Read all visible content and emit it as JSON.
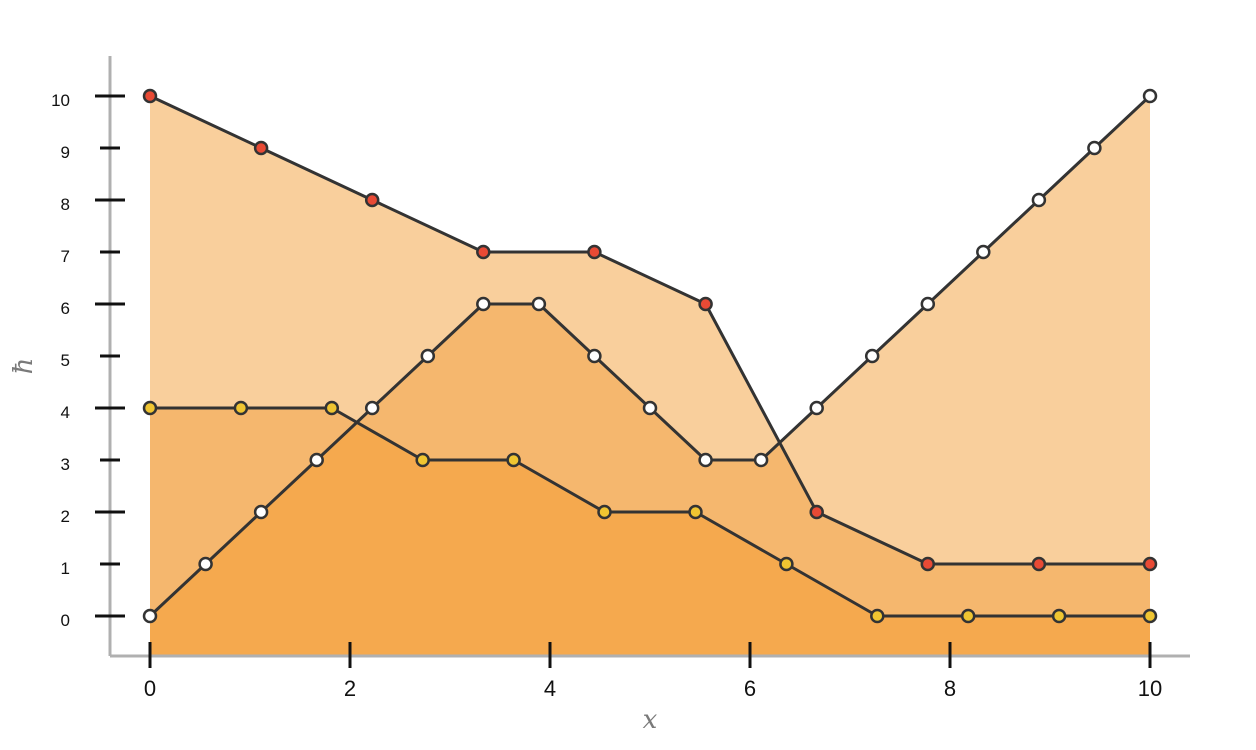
{
  "chart_data": {
    "type": "area",
    "title": "",
    "xlabel": "x",
    "ylabel": "ħ",
    "xlim": [
      -0.4,
      10.4
    ],
    "ylim": [
      -0.75,
      10.75
    ],
    "x_ticks": [
      "0",
      "2",
      "4",
      "6",
      "8",
      "10"
    ],
    "y_ticks": [
      "0",
      "1",
      "2",
      "3",
      "4",
      "5",
      "6",
      "7",
      "8",
      "9",
      "10"
    ],
    "grid": false,
    "legend": "none",
    "colors": {
      "fill_light": "#f9cf9c",
      "fill_mid": "#f5b76e",
      "fill_dark": "#f5a94e",
      "line": "#333333",
      "axis": "#b0b0b0",
      "tick": "#111111",
      "marker_red": "#e84a35",
      "marker_white": "#ffffff",
      "marker_yellow": "#f0c531"
    },
    "series": [
      {
        "marker": "red",
        "x": [
          0,
          1.111,
          2.222,
          3.333,
          4.444,
          5.556,
          6.667,
          7.778,
          8.889,
          10
        ],
        "y": [
          10,
          9,
          8,
          7,
          7,
          6,
          2,
          1,
          1,
          1
        ]
      },
      {
        "marker": "white",
        "x": [
          0,
          0.556,
          1.111,
          1.667,
          2.222,
          2.778,
          3.333,
          3.889,
          4.444,
          5,
          5.556,
          6.111,
          6.667,
          7.222,
          7.778,
          8.333,
          8.889,
          9.444,
          10
        ],
        "y": [
          0,
          1,
          2,
          3,
          4,
          5,
          6,
          6,
          5,
          4,
          3,
          3,
          4,
          5,
          6,
          7,
          8,
          9,
          10
        ]
      },
      {
        "marker": "yellow",
        "x": [
          0,
          0.909,
          1.818,
          2.727,
          3.636,
          4.545,
          5.455,
          6.364,
          7.273,
          8.182,
          9.091,
          10
        ],
        "y": [
          4,
          4,
          4,
          3,
          3,
          2,
          2,
          1,
          0,
          0,
          0,
          0
        ]
      }
    ]
  }
}
